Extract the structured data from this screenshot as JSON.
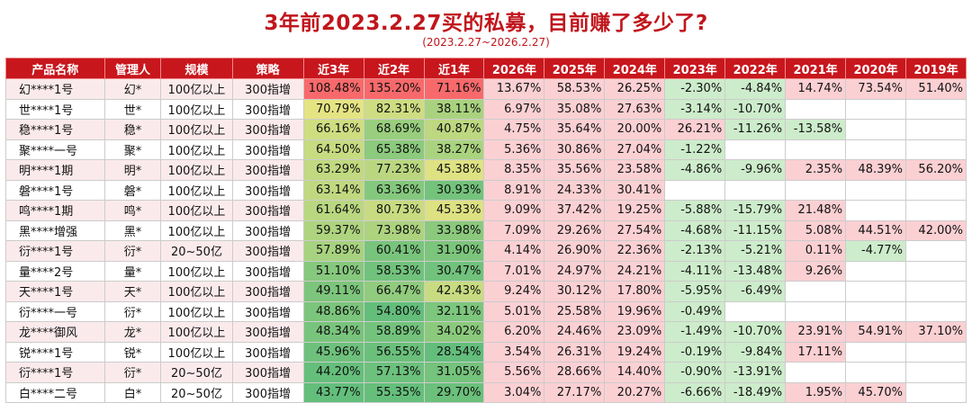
{
  "title": "3年前2023.2.27买的私募，目前赚了多少了?",
  "subtitle": "(2023.2.27~2026.2.27)",
  "columns": [
    "产品名称",
    "管理人",
    "规模",
    "策略",
    "近3年",
    "近2年",
    "近1年",
    "2026年",
    "2025年",
    "2024年",
    "2023年",
    "2022年",
    "2021年",
    "2020年",
    "2019年"
  ],
  "rows": [
    [
      "幻****1号",
      "幻*",
      "100亿以上",
      "300指增",
      "108.48%",
      "135.20%",
      "71.16%",
      "13.67%",
      "58.53%",
      "26.25%",
      "-2.30%",
      "-4.84%",
      "14.74%",
      "73.54%",
      "51.40%"
    ],
    [
      "世****1号",
      "世*",
      "100亿以上",
      "300指增",
      "70.79%",
      "82.31%",
      "38.11%",
      "6.97%",
      "35.08%",
      "27.63%",
      "-3.14%",
      "-10.70%",
      "",
      "",
      ""
    ],
    [
      "稳****1号",
      "稳*",
      "100亿以上",
      "300指增",
      "66.16%",
      "68.69%",
      "40.87%",
      "4.75%",
      "35.64%",
      "20.00%",
      "26.21%",
      "-11.26%",
      "-13.58%",
      "",
      ""
    ],
    [
      "聚****一号",
      "聚*",
      "100亿以上",
      "300指增",
      "64.50%",
      "65.38%",
      "38.27%",
      "5.36%",
      "30.86%",
      "27.04%",
      "-1.22%",
      "",
      "",
      "",
      ""
    ],
    [
      "明****1期",
      "明*",
      "100亿以上",
      "300指增",
      "63.29%",
      "77.23%",
      "45.38%",
      "8.35%",
      "35.56%",
      "23.58%",
      "-4.86%",
      "-9.96%",
      "2.35%",
      "48.39%",
      "56.20%"
    ],
    [
      "磐****1号",
      "磐*",
      "100亿以上",
      "300指增",
      "63.14%",
      "63.36%",
      "30.93%",
      "8.91%",
      "24.33%",
      "30.41%",
      "",
      "",
      "",
      "",
      ""
    ],
    [
      "鸣****1期",
      "鸣*",
      "100亿以上",
      "300指增",
      "61.64%",
      "80.73%",
      "45.33%",
      "9.09%",
      "37.42%",
      "19.25%",
      "-5.88%",
      "-15.79%",
      "21.48%",
      "",
      ""
    ],
    [
      "黑****增强",
      "黑*",
      "100亿以上",
      "300指增",
      "59.37%",
      "73.98%",
      "33.98%",
      "7.09%",
      "29.26%",
      "27.54%",
      "-4.68%",
      "-11.15%",
      "5.08%",
      "44.51%",
      "42.00%"
    ],
    [
      "衍****1号",
      "衍*",
      "20~50亿",
      "300指增",
      "57.89%",
      "60.41%",
      "31.90%",
      "4.14%",
      "26.90%",
      "22.36%",
      "-2.13%",
      "-5.21%",
      "0.11%",
      "-4.77%",
      ""
    ],
    [
      "量****2号",
      "量*",
      "100亿以上",
      "300指增",
      "51.10%",
      "58.53%",
      "30.47%",
      "7.01%",
      "24.97%",
      "24.21%",
      "-4.11%",
      "-13.48%",
      "9.26%",
      "",
      ""
    ],
    [
      "天****1号",
      "天*",
      "100亿以上",
      "300指增",
      "49.11%",
      "66.47%",
      "42.43%",
      "9.24%",
      "30.12%",
      "17.80%",
      "-5.95%",
      "-6.49%",
      "",
      "",
      ""
    ],
    [
      "衍****一号",
      "衍*",
      "100亿以上",
      "300指增",
      "48.86%",
      "54.80%",
      "32.11%",
      "5.01%",
      "25.58%",
      "19.96%",
      "-0.49%",
      "",
      "",
      "",
      ""
    ],
    [
      "龙****御风",
      "龙*",
      "100亿以上",
      "300指增",
      "48.34%",
      "58.89%",
      "34.02%",
      "6.20%",
      "24.46%",
      "23.09%",
      "-1.49%",
      "-10.70%",
      "23.91%",
      "54.91%",
      "37.10%"
    ],
    [
      "锐****1号",
      "锐*",
      "100亿以上",
      "300指增",
      "45.96%",
      "56.55%",
      "28.54%",
      "3.54%",
      "26.31%",
      "19.24%",
      "-0.19%",
      "-9.84%",
      "17.11%",
      "",
      ""
    ],
    [
      "衍****1号",
      "衍*",
      "20~50亿",
      "300指增",
      "44.20%",
      "57.13%",
      "31.05%",
      "5.56%",
      "28.66%",
      "14.40%",
      "-0.90%",
      "-13.91%",
      "",
      "",
      ""
    ],
    [
      "白****二号",
      "白*",
      "20~50亿",
      "300指增",
      "43.77%",
      "55.35%",
      "29.70%",
      "3.04%",
      "27.17%",
      "20.27%",
      "-6.66%",
      "-18.49%",
      "1.95%",
      "45.70%",
      ""
    ]
  ],
  "colors": {
    "title": "#c0161c",
    "header_bg": "#c8161d",
    "positive_bg": "#fbd0d3",
    "negative_bg": "#cdeccb",
    "heat_high": "#f8696b",
    "heat_mid": "#ffeb84",
    "heat_low": "#63be7b"
  }
}
